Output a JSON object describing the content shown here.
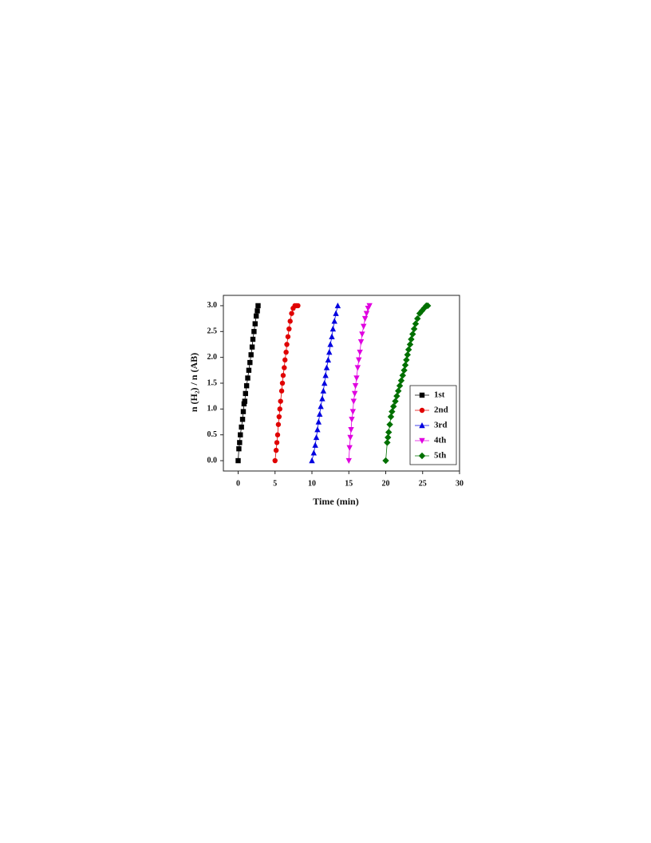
{
  "chart_data": {
    "type": "line",
    "x_label": "Time (min)",
    "y_label": "n (H₂) / n (AB)",
    "xlim": [
      -2,
      30
    ],
    "xticks": [
      0,
      5,
      10,
      15,
      20,
      25,
      30
    ],
    "ylim": [
      -0.2,
      3.2
    ],
    "yticks": [
      {
        "value": 0,
        "label": "0.0"
      },
      0.5,
      {
        "value": 1,
        "label": "1.0"
      },
      1.5,
      {
        "value": 2,
        "label": "2.0"
      },
      2.5,
      {
        "value": 3,
        "label": "3.0"
      }
    ],
    "legend": "lower right",
    "series": [
      {
        "name": "1st",
        "color": "#000000",
        "marker": "square",
        "x": [
          0,
          0.1,
          0.2,
          0.3,
          0.45,
          0.6,
          0.7,
          0.8,
          0.9,
          1.0,
          1.15,
          1.3,
          1.45,
          1.6,
          1.75,
          1.9,
          2.0,
          2.15,
          2.3,
          2.45,
          2.6,
          2.7
        ],
        "values": [
          0,
          0.23,
          0.35,
          0.5,
          0.65,
          0.8,
          0.95,
          1.1,
          1.15,
          1.3,
          1.45,
          1.6,
          1.75,
          1.9,
          2.05,
          2.2,
          2.35,
          2.5,
          2.65,
          2.8,
          2.9,
          3.0
        ]
      },
      {
        "name": "2nd",
        "color": "#e00000",
        "marker": "circle",
        "x": [
          5,
          5.15,
          5.25,
          5.35,
          5.45,
          5.55,
          5.65,
          5.75,
          5.9,
          6.0,
          6.1,
          6.25,
          6.35,
          6.5,
          6.6,
          6.75,
          6.9,
          7.05,
          7.25,
          7.45,
          7.7,
          7.9,
          8.1
        ],
        "values": [
          0,
          0.2,
          0.35,
          0.5,
          0.7,
          0.85,
          1.0,
          1.15,
          1.35,
          1.5,
          1.65,
          1.8,
          1.95,
          2.1,
          2.25,
          2.4,
          2.55,
          2.7,
          2.85,
          2.95,
          3.0,
          3.0,
          3.0
        ]
      },
      {
        "name": "3rd",
        "color": "#0000e0",
        "marker": "triangle-up",
        "x": [
          10,
          10.25,
          10.45,
          10.6,
          10.75,
          10.9,
          11.05,
          11.2,
          11.4,
          11.55,
          11.7,
          11.85,
          12.0,
          12.2,
          12.35,
          12.5,
          12.7,
          12.85,
          13.05,
          13.25,
          13.5
        ],
        "values": [
          0,
          0.15,
          0.3,
          0.45,
          0.6,
          0.75,
          0.9,
          1.05,
          1.2,
          1.35,
          1.5,
          1.65,
          1.8,
          1.95,
          2.1,
          2.25,
          2.4,
          2.55,
          2.7,
          2.85,
          3.0
        ]
      },
      {
        "name": "4th",
        "color": "#e000e0",
        "marker": "triangle-down",
        "x": [
          15,
          15.1,
          15.2,
          15.3,
          15.4,
          15.55,
          15.65,
          15.8,
          15.9,
          16.05,
          16.2,
          16.35,
          16.5,
          16.65,
          16.8,
          17.0,
          17.2,
          17.4,
          17.6,
          17.8
        ],
        "values": [
          0,
          0.25,
          0.45,
          0.6,
          0.8,
          0.95,
          1.15,
          1.3,
          1.45,
          1.6,
          1.8,
          1.95,
          2.1,
          2.3,
          2.45,
          2.6,
          2.75,
          2.85,
          2.95,
          3.0
        ]
      },
      {
        "name": "5th",
        "color": "#007000",
        "marker": "diamond",
        "x": [
          20,
          20.2,
          20.3,
          20.4,
          20.55,
          20.7,
          20.85,
          21.05,
          21.3,
          21.5,
          21.7,
          21.9,
          22.1,
          22.3,
          22.5,
          22.65,
          22.8,
          22.95,
          23.1,
          23.3,
          23.45,
          23.65,
          23.85,
          24.05,
          24.3,
          24.6,
          24.9,
          25.2,
          25.5,
          25.7
        ],
        "values": [
          0,
          0.35,
          0.45,
          0.55,
          0.7,
          0.85,
          0.95,
          1.05,
          1.15,
          1.25,
          1.35,
          1.45,
          1.55,
          1.65,
          1.75,
          1.85,
          1.95,
          2.05,
          2.15,
          2.25,
          2.35,
          2.45,
          2.55,
          2.65,
          2.75,
          2.85,
          2.9,
          2.95,
          3.0,
          3.0
        ]
      }
    ]
  }
}
